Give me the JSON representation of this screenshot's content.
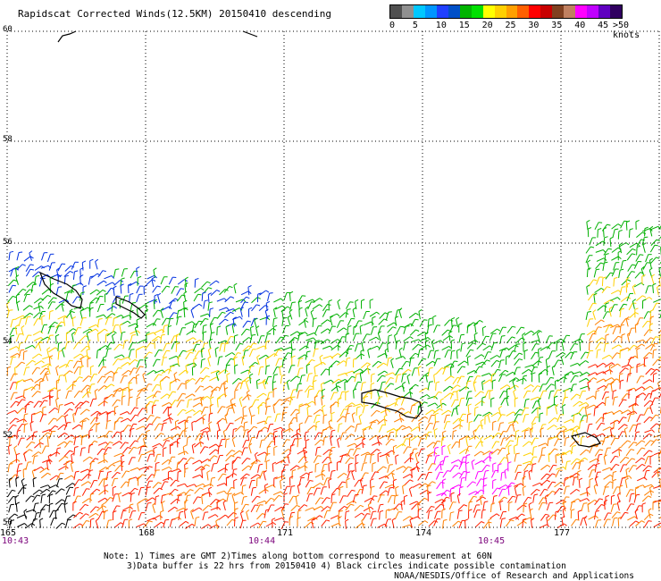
{
  "title": "Rapidscat Corrected Winds(12.5KM) 20150410 descending",
  "legend": {
    "colors": [
      "#505050",
      "#909090",
      "#00c8ff",
      "#0096ff",
      "#2040ff",
      "#0050c8",
      "#00b400",
      "#00e000",
      "#ffff00",
      "#ffd000",
      "#ffa000",
      "#ff6000",
      "#ff0000",
      "#c80000",
      "#804020",
      "#c08060",
      "#ff00ff",
      "#c000ff",
      "#6000c0",
      "#300060"
    ],
    "labels": [
      "0",
      "5",
      "10",
      "15",
      "20",
      "25",
      "30",
      "35",
      "40",
      "45",
      ">50 knots"
    ]
  },
  "axes": {
    "lat_labels": [
      "60",
      "58",
      "56",
      "54",
      "52",
      "50"
    ],
    "lon_labels": [
      "165",
      "168",
      "171",
      "174",
      "177"
    ],
    "time_labels": [
      "10:43",
      "10:44",
      "10:45"
    ]
  },
  "notes": {
    "line1": "Note: 1) Times are GMT 2)Times along bottom correspond to measurement at 60N",
    "line2": "3)Data buffer is 22 hrs from 20150410 4) Black circles indicate possible contamination",
    "credit": "NOAA/NESDIS/Office of Research and Applications"
  },
  "wind_colors": {
    "calm_low": "#000000",
    "blue": "#0030e0",
    "green": "#00b000",
    "yellow": "#ffd000",
    "orange": "#ff8000",
    "red": "#ff2000",
    "magenta": "#ff00ff"
  }
}
